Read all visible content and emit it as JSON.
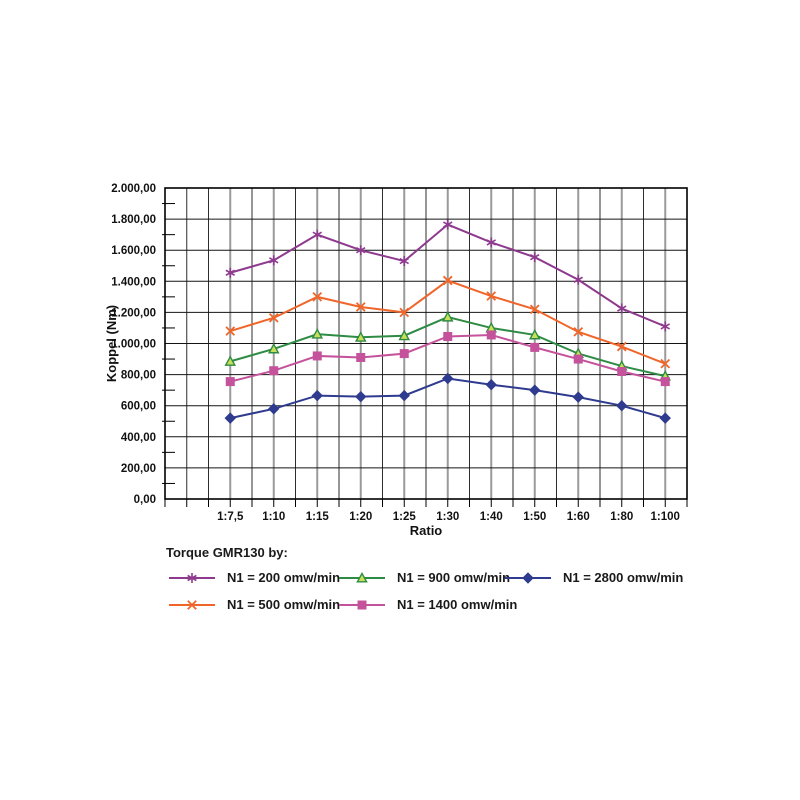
{
  "page": {
    "background_color": "#ffffff"
  },
  "chart_data": {
    "type": "line",
    "title": "",
    "xlabel": "Ratio",
    "ylabel": "Koppel (Nm)",
    "ylim": [
      0,
      2000
    ],
    "grid": true,
    "legend_position": "bottom-left",
    "legend_title": "Torque GMR130 by:",
    "categories": [
      "1:7,5",
      "1:10",
      "1:15",
      "1:20",
      "1:25",
      "1:30",
      "1:40",
      "1:50",
      "1:60",
      "1:80",
      "1:100"
    ],
    "y_ticks": [
      {
        "value": 0,
        "label": "0,00"
      },
      {
        "value": 200,
        "label": "200,00"
      },
      {
        "value": 400,
        "label": "400,00"
      },
      {
        "value": 600,
        "label": "600,00"
      },
      {
        "value": 800,
        "label": "800,00"
      },
      {
        "value": 1000,
        "label": "1.000,00"
      },
      {
        "value": 1200,
        "label": "1.200,00"
      },
      {
        "value": 1400,
        "label": "1.400,00"
      },
      {
        "value": 1600,
        "label": "1.600,00"
      },
      {
        "value": 1800,
        "label": "1.800,00"
      },
      {
        "value": 2000,
        "label": "2.000,00"
      }
    ],
    "series": [
      {
        "name": "N1 = 200 omw/min",
        "color": "#8e3a8e",
        "marker": "star",
        "marker_fill": "#8e3a8e",
        "values": [
          1455,
          1535,
          1700,
          1600,
          1530,
          1765,
          1650,
          1555,
          1410,
          1225,
          1110
        ]
      },
      {
        "name": "N1 = 500 omw/min",
        "color": "#f0662a",
        "marker": "x",
        "marker_fill": "#f0662a",
        "values": [
          1080,
          1165,
          1300,
          1235,
          1200,
          1405,
          1305,
          1220,
          1075,
          980,
          870
        ]
      },
      {
        "name": "N1 = 900 omw/min",
        "color": "#2e8b44",
        "marker": "triangle",
        "marker_fill": "#c8df5a",
        "values": [
          885,
          965,
          1060,
          1040,
          1050,
          1170,
          1100,
          1055,
          935,
          855,
          790
        ]
      },
      {
        "name": "N1 = 1400 omw/min",
        "color": "#c4539c",
        "marker": "square",
        "marker_fill": "#c4539c",
        "values": [
          755,
          825,
          920,
          910,
          935,
          1045,
          1055,
          975,
          900,
          820,
          755
        ]
      },
      {
        "name": "N1 = 2800 omw/min",
        "color": "#2f3b8f",
        "marker": "diamond",
        "marker_fill": "#2f3b8f",
        "values": [
          520,
          580,
          665,
          658,
          665,
          775,
          735,
          700,
          655,
          600,
          520
        ]
      }
    ],
    "legend_rows": [
      [
        0,
        2,
        4
      ],
      [
        1,
        3
      ]
    ],
    "gridline_color_major_h": "#141414",
    "gridline_color_category": "#9a9a9a",
    "gridline_color_minor_v": "#2e2e2e",
    "axis_color": "#000000"
  }
}
